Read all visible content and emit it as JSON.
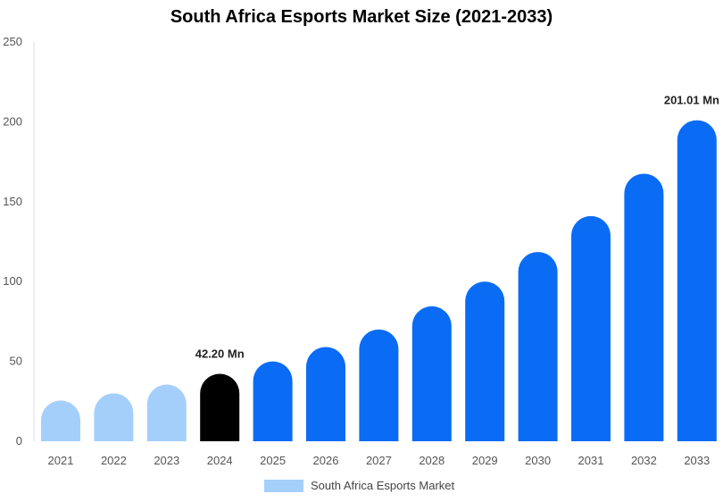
{
  "chart_data": {
    "type": "bar",
    "title": "South Africa Esports Market Size (2021-2033)",
    "xlabel": "",
    "ylabel": "",
    "ylim": [
      0,
      250
    ],
    "yticks": [
      0,
      50,
      100,
      150,
      200,
      250
    ],
    "categories": [
      "2021",
      "2022",
      "2023",
      "2024",
      "2025",
      "2026",
      "2027",
      "2028",
      "2029",
      "2030",
      "2031",
      "2032",
      "2033"
    ],
    "series": [
      {
        "name": "South Africa Esports Market",
        "values": [
          25.5,
          30.0,
          35.5,
          42.2,
          50.0,
          59.0,
          70.0,
          84.5,
          100.0,
          118.5,
          141.0,
          167.5,
          201.01
        ]
      }
    ],
    "data_labels": [
      {
        "category": "2024",
        "text": "42.20 Mn"
      },
      {
        "category": "2033",
        "text": "201.01 Mn"
      }
    ],
    "legend": {
      "label": "South Africa Esports Market",
      "placement": "bottom-center"
    },
    "grid": false
  },
  "colors": {
    "historical": "#A5CFFB",
    "current": "#000000",
    "forecast": "#0A6CF5",
    "legend_swatch": "#A5CFFB"
  }
}
